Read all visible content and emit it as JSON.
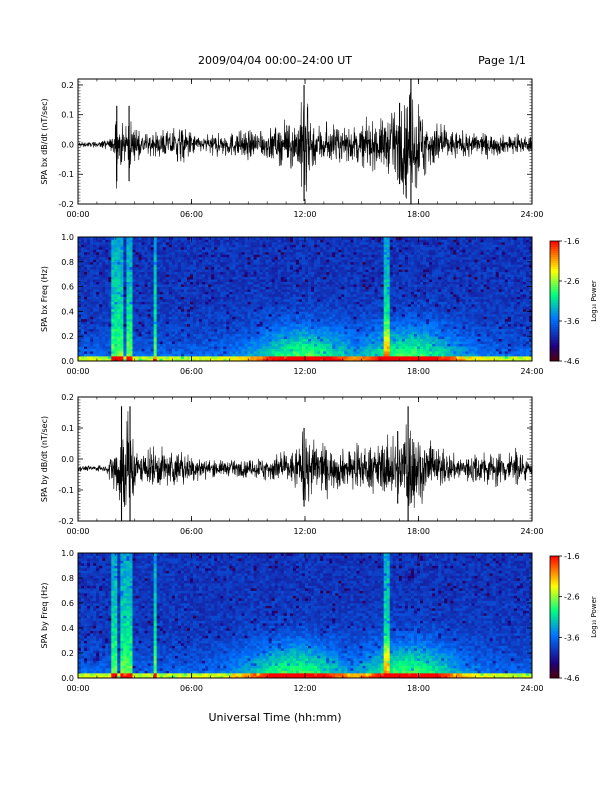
{
  "header": {
    "title": "2009/04/04  00:00–24:00 UT",
    "page": "Page 1/1"
  },
  "xlabel": "Universal Time (hh:mm)",
  "colorbar": {
    "label": "Log₁₀ Power",
    "ticks": [
      "-1.6",
      "-2.6",
      "-3.6",
      "-4.6"
    ],
    "range": [
      -4.6,
      -1.6
    ]
  },
  "chart_data": [
    {
      "type": "line",
      "ylabel": "SPA bx dB/dt (nT/sec)",
      "xlim": [
        "00:00",
        "24:00"
      ],
      "xticks": [
        "00:00",
        "06:00",
        "12:00",
        "18:00",
        "24:00"
      ],
      "ylim": [
        -0.2,
        0.22
      ],
      "yticks": [
        "0.2",
        "0.1",
        "0.0",
        "-0.1",
        "-0.2"
      ],
      "baseline": 0.0,
      "activity": [
        {
          "t": 0.0,
          "amp": 0.01
        },
        {
          "t": 1.0,
          "amp": 0.01
        },
        {
          "t": 1.9,
          "amp": 0.03
        },
        {
          "t": 2.05,
          "amp": 0.13
        },
        {
          "t": 2.5,
          "amp": 0.05
        },
        {
          "t": 2.7,
          "amp": 0.13
        },
        {
          "t": 3.0,
          "amp": 0.05
        },
        {
          "t": 4.0,
          "amp": 0.04
        },
        {
          "t": 5.5,
          "amp": 0.07
        },
        {
          "t": 6.5,
          "amp": 0.03
        },
        {
          "t": 8.0,
          "amp": 0.05
        },
        {
          "t": 10.0,
          "amp": 0.06
        },
        {
          "t": 11.5,
          "amp": 0.09
        },
        {
          "t": 11.95,
          "amp": 0.2
        },
        {
          "t": 12.5,
          "amp": 0.09
        },
        {
          "t": 14.0,
          "amp": 0.06
        },
        {
          "t": 16.0,
          "amp": 0.1
        },
        {
          "t": 17.0,
          "amp": 0.14
        },
        {
          "t": 17.6,
          "amp": 0.22
        },
        {
          "t": 18.5,
          "amp": 0.1
        },
        {
          "t": 20.0,
          "amp": 0.05
        },
        {
          "t": 22.0,
          "amp": 0.04
        },
        {
          "t": 24.0,
          "amp": 0.03
        }
      ]
    },
    {
      "type": "heatmap",
      "ylabel": "SPA bx Freq (Hz)",
      "xlim": [
        "00:00",
        "24:00"
      ],
      "xticks": [
        "00:00",
        "06:00",
        "12:00",
        "18:00",
        "24:00"
      ],
      "ylim": [
        0.0,
        1.0
      ],
      "yticks": [
        "1.0",
        "0.8",
        "0.6",
        "0.4",
        "0.2",
        "0.0"
      ],
      "zlim": [
        -4.6,
        -1.6
      ],
      "bright_stripes_hours": [
        1.9,
        2.3,
        2.75,
        4.1,
        16.3
      ],
      "broadband_centers_hours": [
        12.0,
        17.5
      ]
    },
    {
      "type": "line",
      "ylabel": "SPA by dB/dt (nT/sec)",
      "xlim": [
        "00:00",
        "24:00"
      ],
      "xticks": [
        "00:00",
        "06:00",
        "12:00",
        "18:00",
        "24:00"
      ],
      "ylim": [
        -0.2,
        0.2
      ],
      "yticks": [
        "0.2",
        "0.1",
        "0.0",
        "-0.1",
        "-0.2"
      ],
      "baseline": -0.03,
      "activity": [
        {
          "t": 0.0,
          "amp": 0.01
        },
        {
          "t": 1.5,
          "amp": 0.01
        },
        {
          "t": 1.95,
          "amp": 0.09
        },
        {
          "t": 2.3,
          "amp": 0.2
        },
        {
          "t": 2.75,
          "amp": 0.2
        },
        {
          "t": 3.2,
          "amp": 0.05
        },
        {
          "t": 4.1,
          "amp": 0.08
        },
        {
          "t": 5.5,
          "amp": 0.06
        },
        {
          "t": 7.0,
          "amp": 0.03
        },
        {
          "t": 9.0,
          "amp": 0.03
        },
        {
          "t": 11.5,
          "amp": 0.07
        },
        {
          "t": 11.95,
          "amp": 0.13
        },
        {
          "t": 13.5,
          "amp": 0.07
        },
        {
          "t": 15.5,
          "amp": 0.08
        },
        {
          "t": 16.9,
          "amp": 0.12
        },
        {
          "t": 17.45,
          "amp": 0.2
        },
        {
          "t": 18.5,
          "amp": 0.09
        },
        {
          "t": 20.0,
          "amp": 0.05
        },
        {
          "t": 23.2,
          "amp": 0.07
        },
        {
          "t": 24.0,
          "amp": 0.02
        }
      ]
    },
    {
      "type": "heatmap",
      "ylabel": "SPA by Freq (Hz)",
      "xlim": [
        "00:00",
        "24:00"
      ],
      "xticks": [
        "00:00",
        "06:00",
        "12:00",
        "18:00",
        "24:00"
      ],
      "ylim": [
        0.0,
        1.0
      ],
      "yticks": [
        "1.0",
        "0.8",
        "0.6",
        "0.4",
        "0.2",
        "0.0"
      ],
      "zlim": [
        -4.6,
        -1.6
      ],
      "bright_stripes_hours": [
        1.9,
        2.35,
        2.75,
        4.1,
        16.3
      ],
      "broadband_centers_hours": [
        11.5,
        17.5
      ]
    }
  ]
}
